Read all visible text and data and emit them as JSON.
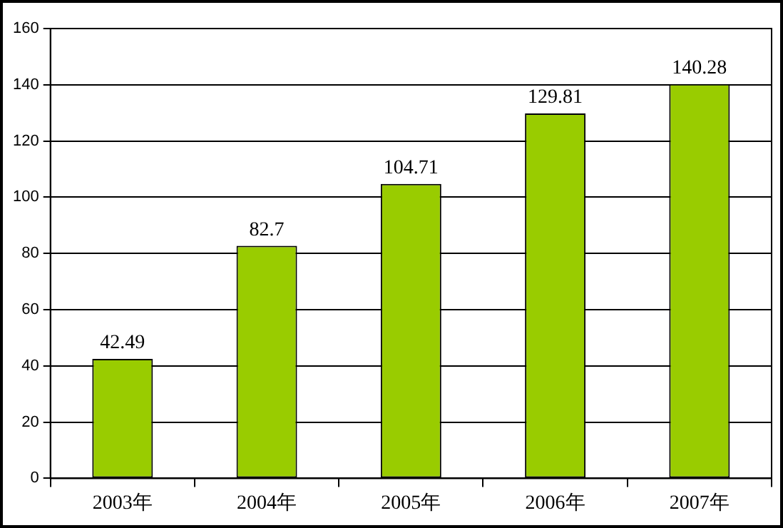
{
  "chart_data": {
    "type": "bar",
    "categories": [
      "2003年",
      "2004年",
      "2005年",
      "2006年",
      "2007年"
    ],
    "values": [
      42.49,
      82.7,
      104.71,
      129.81,
      140.28
    ],
    "color": "#99cc00",
    "ylim": [
      0,
      160
    ],
    "yticks": [
      0,
      20,
      40,
      60,
      80,
      100,
      120,
      140,
      160
    ],
    "grid": "y",
    "data_labels": true
  }
}
